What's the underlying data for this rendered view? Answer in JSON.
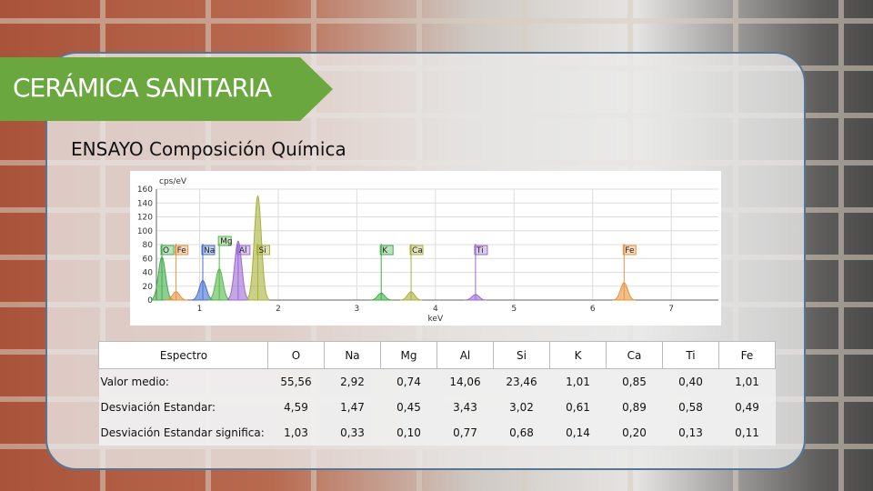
{
  "banner": "CERÁMICA SANITARIA",
  "subtitle": "ENSAYO  Composición Química",
  "spectrum": {
    "type": "spectrum",
    "ylabel": "cps/eV",
    "xlabel": "keV",
    "xlim": [
      0.45,
      7.6
    ],
    "ylim": [
      0,
      160
    ],
    "yticks": [
      0,
      20,
      40,
      60,
      80,
      100,
      120,
      140,
      160
    ],
    "xticks": [
      1,
      2,
      3,
      4,
      5,
      6,
      7
    ],
    "peaks": [
      {
        "label": "O",
        "x": 0.52,
        "height": 62,
        "color": "#3fae49"
      },
      {
        "label": "Fe",
        "x": 0.7,
        "height": 12,
        "color": "#e8923a"
      },
      {
        "label": "Na",
        "x": 1.04,
        "height": 28,
        "color": "#4a6fd0"
      },
      {
        "label": "Mg",
        "x": 1.25,
        "height": 45,
        "color": "#55b84a"
      },
      {
        "label": "Al",
        "x": 1.49,
        "height": 85,
        "color": "#9b6ad0"
      },
      {
        "label": "Si",
        "x": 1.74,
        "height": 150,
        "color": "#a8b03a"
      },
      {
        "label": "K",
        "x": 3.31,
        "height": 10,
        "color": "#3fae49"
      },
      {
        "label": "Ca",
        "x": 3.69,
        "height": 12,
        "color": "#a8b03a"
      },
      {
        "label": "Ti",
        "x": 4.51,
        "height": 8,
        "color": "#9b6ad0"
      },
      {
        "label": "Fe",
        "x": 6.4,
        "height": 25,
        "color": "#e8923a"
      }
    ]
  },
  "table": {
    "header": [
      "Espectro",
      "O",
      "Na",
      "Mg",
      "Al",
      "Si",
      "K",
      "Ca",
      "Ti",
      "Fe"
    ],
    "rows": [
      [
        "Valor medio:",
        "55,56",
        "2,92",
        "0,74",
        "14,06",
        "23,46",
        "1,01",
        "0,85",
        "0,40",
        "1,01"
      ],
      [
        "Desviación Estandar:",
        "4,59",
        "1,47",
        "0,45",
        "3,43",
        "3,02",
        "0,61",
        "0,89",
        "0,58",
        "0,49"
      ],
      [
        "Desviación Estandar significa:",
        "1,03",
        "0,33",
        "0,10",
        "0,77",
        "0,68",
        "0,14",
        "0,20",
        "0,13",
        "0,11"
      ]
    ]
  }
}
